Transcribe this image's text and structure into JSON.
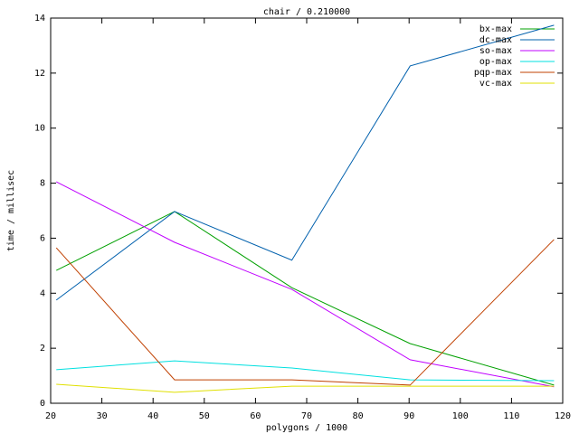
{
  "chart_data": {
    "type": "line",
    "title": "chair / 0.210000",
    "x_label": "polygons / 1000",
    "y_label": "time / millisec",
    "x": [
      21.1,
      44.2,
      67.1,
      90.2,
      118.3
    ],
    "series": [
      {
        "name": "bx-max",
        "color": "#00a000",
        "values": [
          4.83,
          6.97,
          4.2,
          2.17,
          0.66
        ]
      },
      {
        "name": "dc-max",
        "color": "#0060ad",
        "values": [
          3.75,
          6.97,
          5.2,
          12.26,
          13.74
        ]
      },
      {
        "name": "so-max",
        "color": "#c000ff",
        "values": [
          8.05,
          5.85,
          4.14,
          1.58,
          0.6
        ]
      },
      {
        "name": "op-max",
        "color": "#00e0e0",
        "values": [
          1.22,
          1.54,
          1.28,
          0.85,
          0.82
        ]
      },
      {
        "name": "pqp-max",
        "color": "#c04000",
        "values": [
          5.65,
          0.85,
          0.85,
          0.66,
          5.95
        ]
      },
      {
        "name": "vc-max",
        "color": "#e0e000",
        "values": [
          0.69,
          0.4,
          0.62,
          0.62,
          0.62
        ]
      }
    ],
    "xlim": [
      20,
      120
    ],
    "xticks": [
      20,
      30,
      40,
      50,
      60,
      70,
      80,
      90,
      100,
      110,
      120
    ],
    "ylim": [
      0,
      14
    ],
    "yticks": [
      0,
      2,
      4,
      6,
      8,
      10,
      12,
      14
    ],
    "grid": false,
    "legend": "top-right"
  }
}
